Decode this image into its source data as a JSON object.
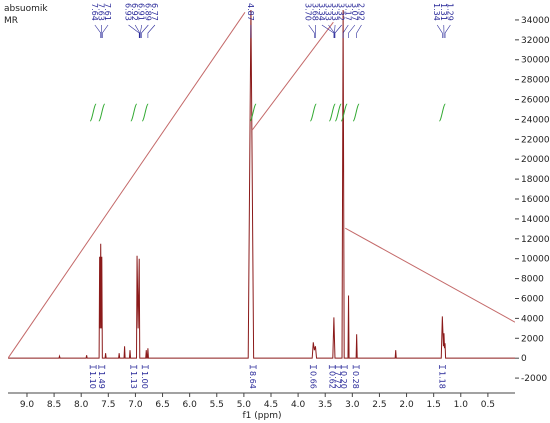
{
  "chart_data": {
    "type": "line",
    "title": "absuomik",
    "subtitle": "MR",
    "x_label": "f1 (ppm)",
    "xlim": [
      9.35,
      0.0
    ],
    "ylim": [
      -3500,
      35200
    ],
    "xticks": [
      {
        "value": 9,
        "label": "9.0"
      },
      8.5,
      {
        "value": 8,
        "label": "8.0"
      },
      7.5,
      {
        "value": 7,
        "label": "7.0"
      },
      6.5,
      {
        "value": 6,
        "label": "6.0"
      },
      5.5,
      {
        "value": 5,
        "label": "5.0"
      },
      4.5,
      {
        "value": 4,
        "label": "4.0"
      },
      3.5,
      {
        "value": 3,
        "label": "3.0"
      },
      2.5,
      {
        "value": 2,
        "label": "2.0"
      },
      1.5,
      {
        "value": 1,
        "label": "1.0"
      },
      0.5
    ],
    "yticks": [
      -2000,
      0,
      2000,
      4000,
      6000,
      8000,
      10000,
      12000,
      14000,
      16000,
      18000,
      20000,
      22000,
      24000,
      26000,
      28000,
      30000,
      32000,
      34000
    ],
    "grid": false,
    "series": [
      {
        "color": "#8b1a1a",
        "x": [
          9.35,
          8.41,
          8.4,
          8.39,
          7.91,
          7.9,
          7.89,
          7.67,
          7.66,
          7.65,
          7.64,
          7.63,
          7.62,
          7.61,
          7.56,
          7.55,
          7.54,
          7.31,
          7.3,
          7.29,
          7.21,
          7.2,
          7.19,
          7.11,
          7.1,
          7.09,
          6.98,
          6.97,
          6.95,
          6.93,
          6.92,
          6.81,
          6.8,
          6.79,
          6.78,
          6.77,
          6.76,
          4.92,
          4.87,
          4.82,
          3.74,
          3.72,
          3.7,
          3.68,
          3.66,
          3.36,
          3.34,
          3.33,
          3.32,
          3.19,
          3.17,
          3.15,
          3.08,
          3.07,
          3.06,
          2.93,
          2.92,
          2.91,
          2.21,
          2.2,
          2.19,
          1.36,
          1.34,
          1.32,
          1.31,
          1.3,
          1.29,
          1.28,
          0.0
        ],
        "values": [
          0,
          0,
          200,
          0,
          0,
          300,
          0,
          0,
          10200,
          3000,
          11500,
          3000,
          10200,
          0,
          0,
          500,
          0,
          0,
          500,
          0,
          0,
          1200,
          0,
          0,
          800,
          0,
          0,
          10300,
          3000,
          10000,
          0,
          0,
          800,
          0,
          0,
          1000,
          0,
          0,
          35000,
          0,
          0,
          1600,
          800,
          1200,
          0,
          0,
          4100,
          2000,
          0,
          0,
          35000,
          0,
          0,
          6300,
          0,
          0,
          2400,
          0,
          0,
          800,
          0,
          0,
          4200,
          1200,
          2500,
          1000,
          1500,
          0,
          0
        ]
      },
      {
        "color": "#c46a6a",
        "x": [
          9.35,
          4.98,
          4.9,
          4.85,
          3.35,
          3.3,
          3.13,
          0.0
        ],
        "values": [
          0,
          34770,
          null,
          22900,
          33770,
          null,
          13070,
          3620
        ]
      }
    ],
    "peak_labels": [
      [
        7.64,
        7.63,
        7.61
      ],
      [
        6.93,
        6.92,
        6.91,
        6.89,
        6.77
      ],
      [
        4.87
      ],
      [
        {
          "value": 3.7,
          "label": "3.70"
        },
        3.68,
        3.34,
        3.33,
        3.33,
        3.32,
        3.17,
        3.07,
        2.92
      ],
      [
        1.34,
        1.31,
        1.29
      ]
    ],
    "integrals": [
      {
        "x": 7.78,
        "value": 1.1,
        "label": "1.10"
      },
      {
        "x": 7.62,
        "value": 1.49
      },
      {
        "x": 7.03,
        "value": 1.13
      },
      {
        "x": 6.82,
        "value": 1,
        "label": "1.00"
      },
      {
        "x": 4.83,
        "value": 8.64
      },
      {
        "x": 3.72,
        "value": 0.66
      },
      {
        "x": 3.37,
        "value": 0.62
      },
      {
        "x": 3.26,
        "value": 7.72
      },
      {
        "x": 3.15,
        "value": 0.2,
        "label": "0.20"
      },
      {
        "x": 2.93,
        "value": 0.28
      },
      {
        "x": 1.34,
        "value": 1.18
      }
    ]
  }
}
